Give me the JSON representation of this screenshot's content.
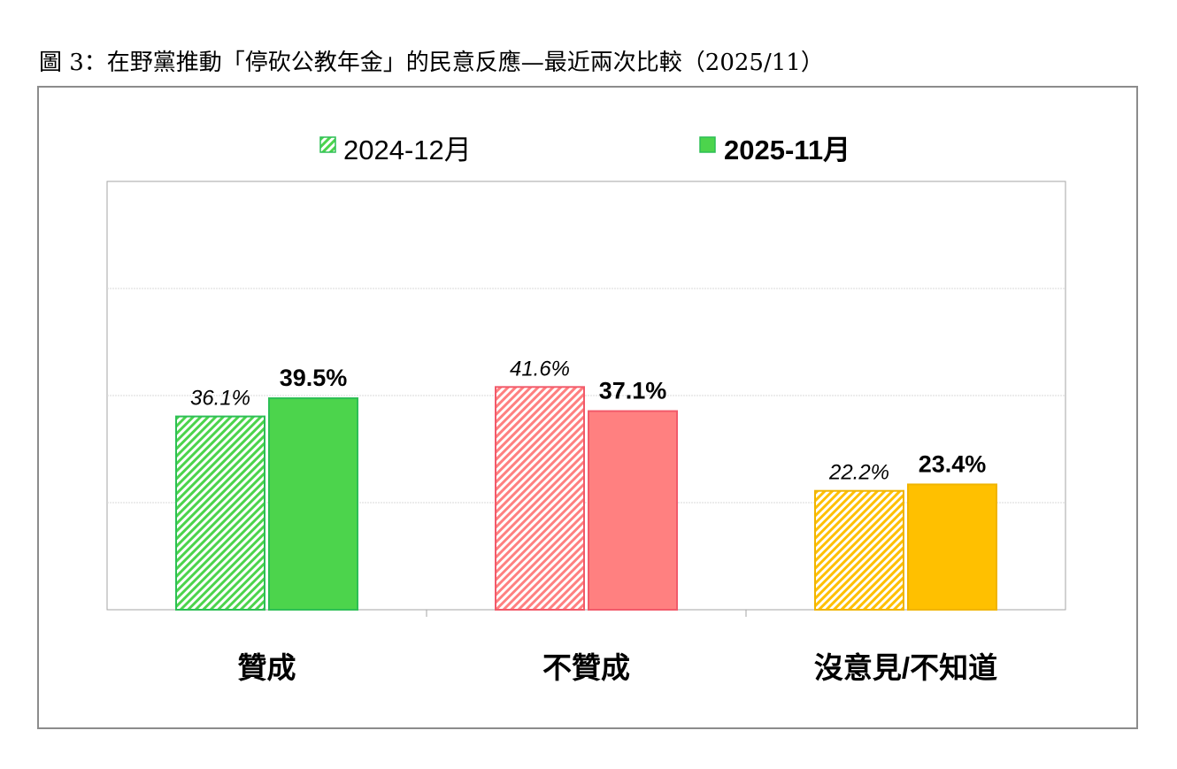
{
  "chart_data": {
    "type": "bar",
    "title": "圖 3：在野黨推動「停砍公教年金」的民意反應—最近兩次比較（2025/11）",
    "categories": [
      "贊成",
      "不贊成",
      "沒意見/不知道"
    ],
    "series": [
      {
        "name": "2024-12月",
        "values": [
          36.1,
          41.6,
          22.2
        ],
        "labels": [
          "36.1%",
          "41.6%",
          "22.2%"
        ],
        "style": "hatched"
      },
      {
        "name": "2025-11月",
        "values": [
          39.5,
          37.1,
          23.4
        ],
        "labels": [
          "39.5%",
          "37.1%",
          "23.4%"
        ],
        "style": "solid"
      }
    ],
    "category_colors": [
      "#4CD44C",
      "#FF8080",
      "#FFC000"
    ],
    "category_border_colors": [
      "#2DBF55",
      "#F25A6A",
      "#F0B400"
    ],
    "ylim": [
      0,
      80
    ],
    "gridlines": [
      20,
      40,
      60
    ],
    "grid": true,
    "legend": "top-center",
    "xlabel": "",
    "ylabel": ""
  }
}
